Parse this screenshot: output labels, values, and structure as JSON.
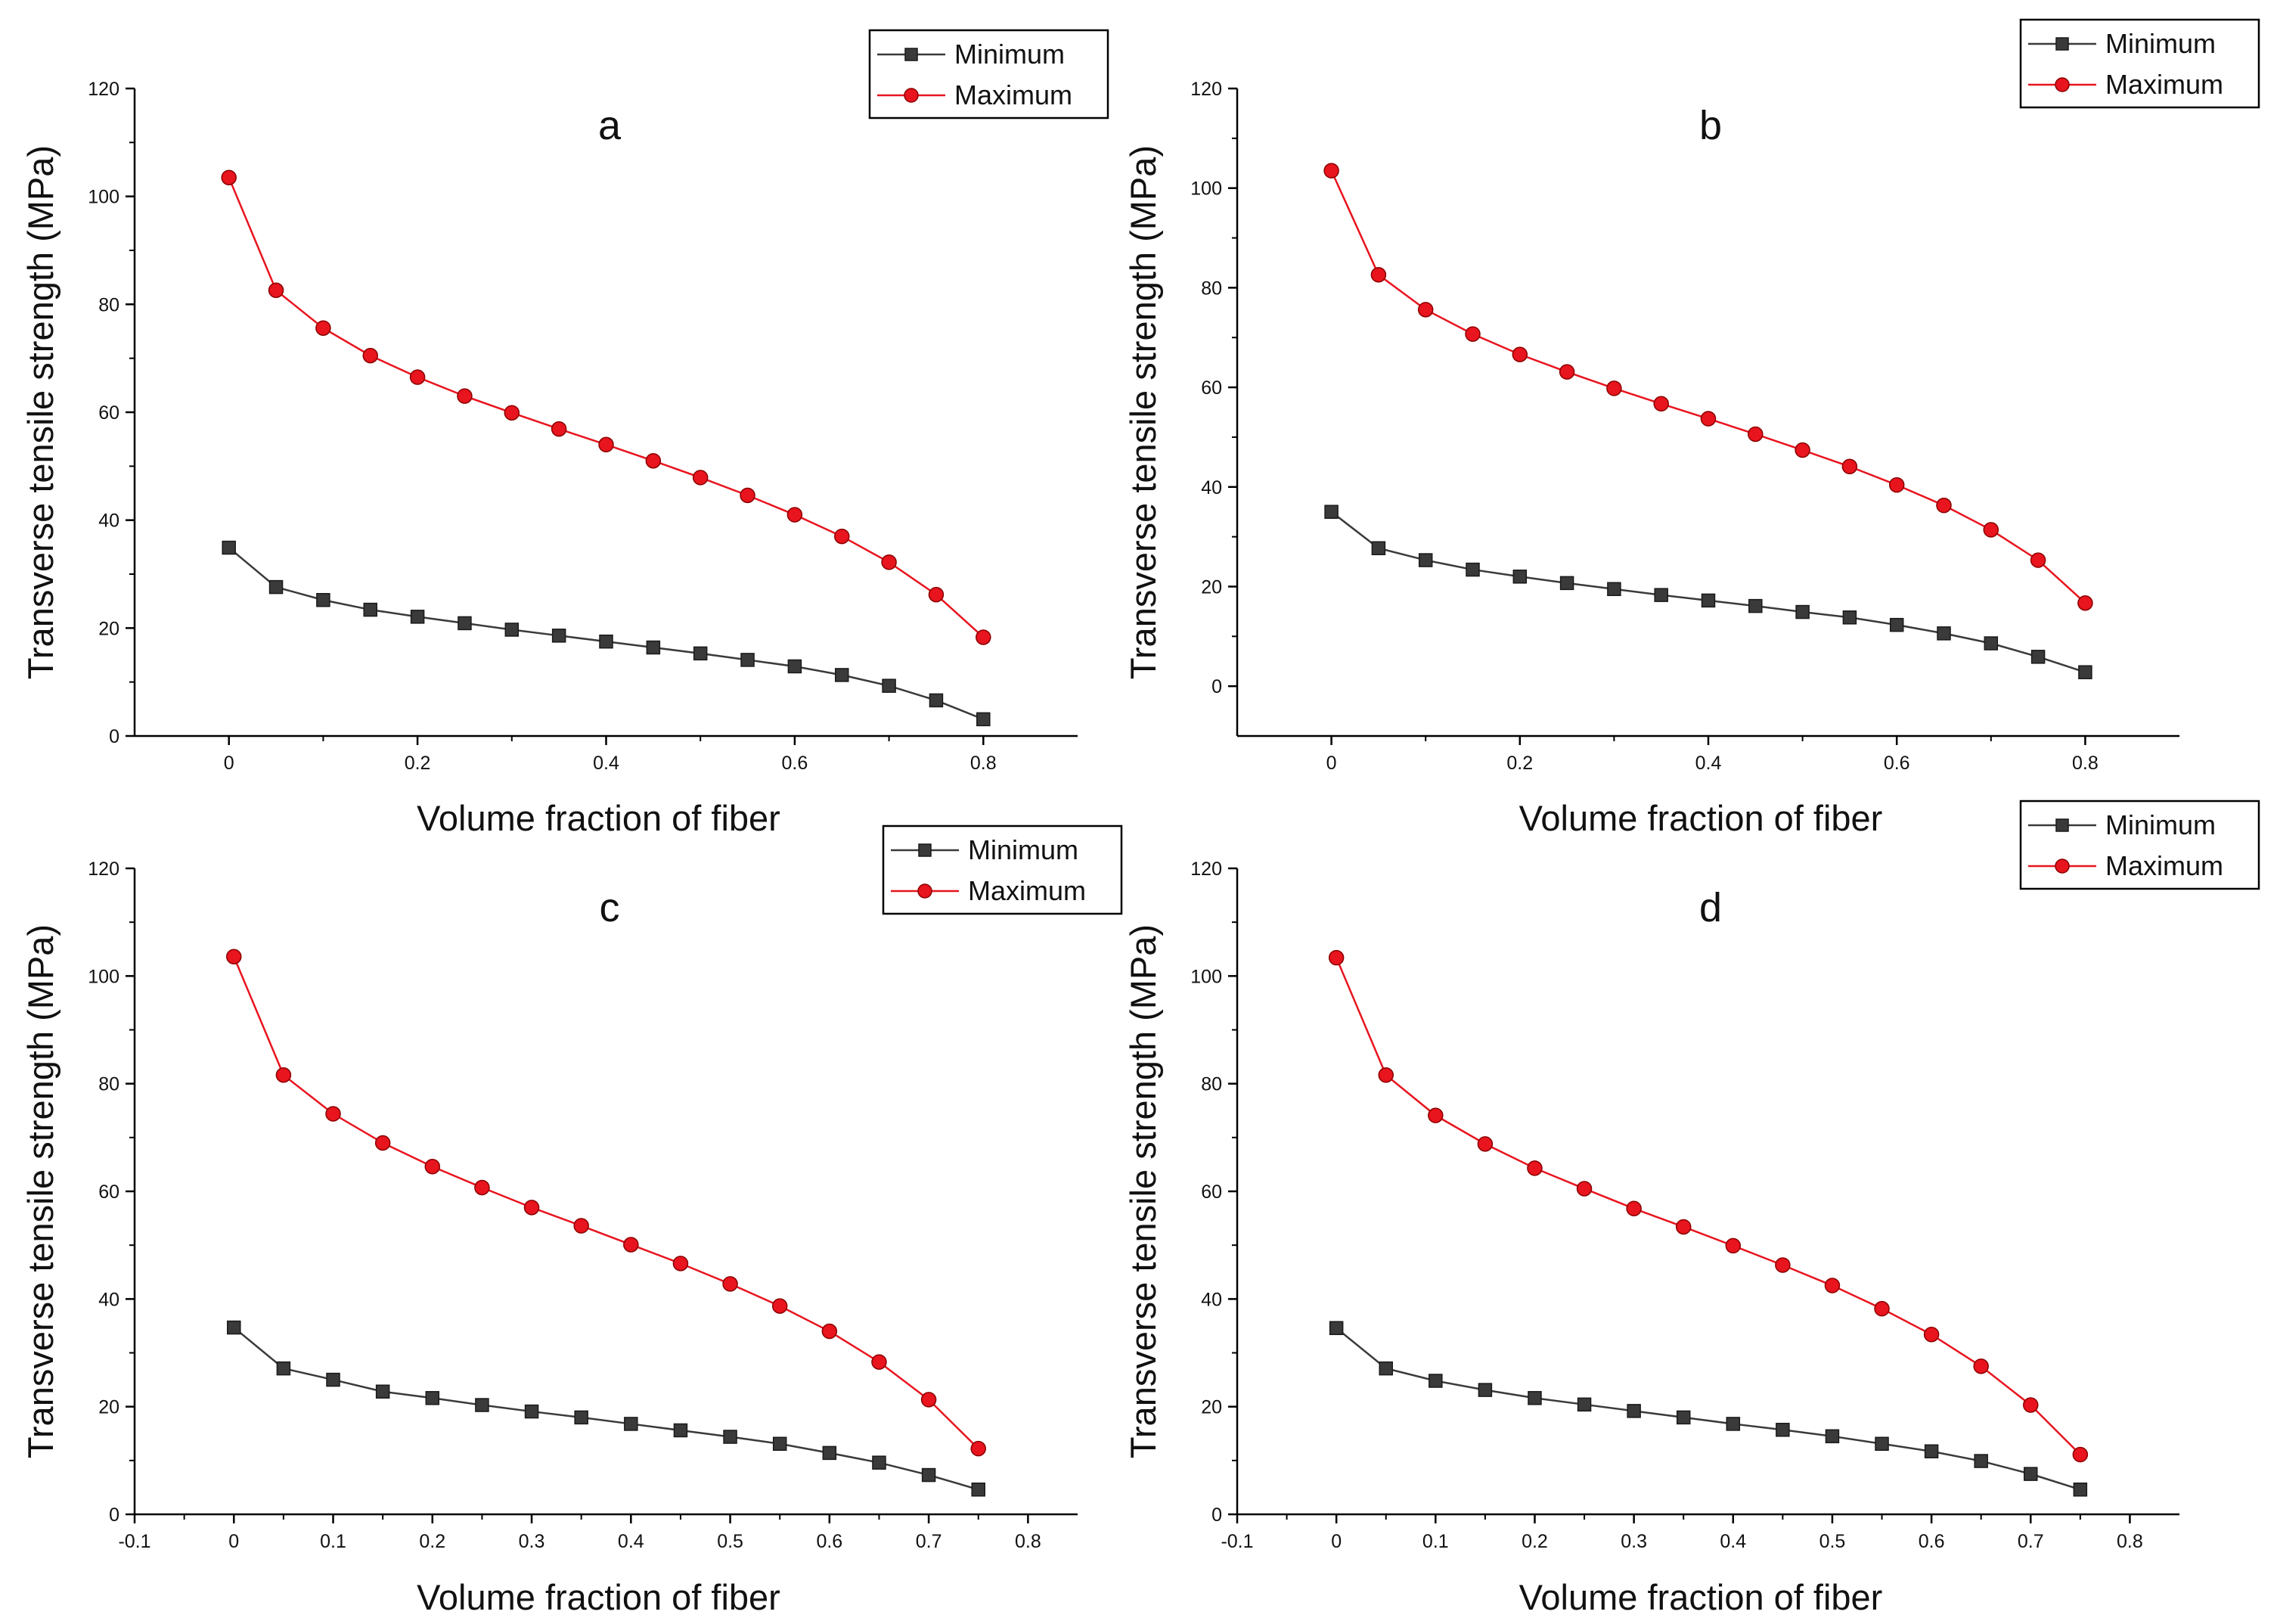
{
  "colors": {
    "minimum": "#3a3a3a",
    "maximum": "#e8141e",
    "axis": "#000000"
  },
  "chart_data": [
    {
      "type": "line",
      "panel": "a",
      "xlabel": "Volume fraction of fiber",
      "ylabel": "Transverse tensile strength (MPa)",
      "xlim": [
        -0.1,
        0.9
      ],
      "ylim": [
        0,
        120
      ],
      "xticks": [
        "0",
        "0.2",
        "0.4",
        "0.6",
        "0.8"
      ],
      "yticks": [
        "0",
        "20",
        "40",
        "60",
        "80",
        "100",
        "120"
      ],
      "legend_position": "top-right",
      "x": [
        0,
        0.05,
        0.1,
        0.15,
        0.2,
        0.25,
        0.3,
        0.35,
        0.4,
        0.45,
        0.5,
        0.55,
        0.6,
        0.65,
        0.7,
        0.75,
        0.8
      ],
      "series": [
        {
          "name": "Minimum",
          "marker": "square",
          "values": [
            34.9,
            27.6,
            25.2,
            23.4,
            22.1,
            20.9,
            19.7,
            18.6,
            17.5,
            16.4,
            15.3,
            14.1,
            12.9,
            11.3,
            9.3,
            6.6,
            3.1
          ]
        },
        {
          "name": "Maximum",
          "marker": "circle",
          "values": [
            103.5,
            82.6,
            75.6,
            70.5,
            66.5,
            63.0,
            59.9,
            56.9,
            54.0,
            51.0,
            47.9,
            44.6,
            41.0,
            37.0,
            32.2,
            26.2,
            18.3
          ]
        }
      ]
    },
    {
      "type": "line",
      "panel": "b",
      "xlabel": "Volume fraction of fiber",
      "ylabel": "Transverse tensile strength (MPa)",
      "xlim": [
        -0.1,
        0.9
      ],
      "ylim": [
        -10,
        120
      ],
      "xticks": [
        "0",
        "0.2",
        "0.4",
        "0.6",
        "0.8"
      ],
      "yticks": [
        "0",
        "20",
        "40",
        "60",
        "80",
        "100",
        "120"
      ],
      "legend_position": "top-right",
      "x": [
        0,
        0.05,
        0.1,
        0.15,
        0.2,
        0.25,
        0.3,
        0.35,
        0.4,
        0.45,
        0.5,
        0.55,
        0.6,
        0.65,
        0.7,
        0.75,
        0.8
      ],
      "series": [
        {
          "name": "Minimum",
          "marker": "square",
          "values": [
            35.0,
            27.7,
            25.3,
            23.4,
            22.0,
            20.7,
            19.5,
            18.3,
            17.2,
            16.1,
            14.9,
            13.8,
            12.3,
            10.6,
            8.6,
            5.9,
            2.8
          ]
        },
        {
          "name": "Maximum",
          "marker": "circle",
          "values": [
            103.5,
            82.6,
            75.6,
            70.7,
            66.6,
            63.1,
            59.8,
            56.7,
            53.7,
            50.6,
            47.4,
            44.1,
            40.4,
            36.3,
            31.4,
            25.3,
            16.7
          ]
        }
      ]
    },
    {
      "type": "line",
      "panel": "c",
      "xlabel": "Volume fraction of fiber",
      "ylabel": "Transverse tensile strength (MPa)",
      "xlim": [
        -0.1,
        0.85
      ],
      "ylim": [
        0,
        120
      ],
      "xticks": [
        "-0.1",
        "0",
        "0.1",
        "0.2",
        "0.3",
        "0.4",
        "0.5",
        "0.6",
        "0.7",
        "0.8"
      ],
      "yticks": [
        "0",
        "20",
        "40",
        "60",
        "80",
        "100",
        "120"
      ],
      "legend_position": "top-right",
      "x": [
        0,
        0.05,
        0.1,
        0.15,
        0.2,
        0.25,
        0.3,
        0.35,
        0.4,
        0.45,
        0.5,
        0.55,
        0.6,
        0.65,
        0.7,
        0.75
      ],
      "series": [
        {
          "name": "Minimum",
          "marker": "square",
          "values": [
            34.7,
            27.1,
            25.0,
            22.8,
            21.6,
            20.3,
            19.1,
            18.0,
            16.8,
            15.6,
            14.4,
            13.1,
            11.4,
            9.6,
            7.3,
            4.6
          ]
        },
        {
          "name": "Maximum",
          "marker": "circle",
          "values": [
            103.6,
            81.6,
            74.4,
            69.0,
            64.6,
            60.7,
            57.0,
            53.6,
            50.1,
            46.6,
            42.8,
            38.7,
            34.0,
            28.3,
            21.3,
            12.2
          ]
        }
      ]
    },
    {
      "type": "line",
      "panel": "d",
      "xlabel": "Volume fraction of fiber",
      "ylabel": "Transverse tensile strength (MPa)",
      "xlim": [
        -0.1,
        0.85
      ],
      "ylim": [
        0,
        120
      ],
      "xticks": [
        "-0.1",
        "0",
        "0.1",
        "0.2",
        "0.3",
        "0.4",
        "0.5",
        "0.6",
        "0.7",
        "0.8"
      ],
      "yticks": [
        "0",
        "20",
        "40",
        "60",
        "80",
        "100",
        "120"
      ],
      "legend_position": "top-right",
      "x": [
        0,
        0.05,
        0.1,
        0.15,
        0.2,
        0.25,
        0.3,
        0.35,
        0.4,
        0.45,
        0.5,
        0.55,
        0.6,
        0.65,
        0.7,
        0.75
      ],
      "series": [
        {
          "name": "Minimum",
          "marker": "square",
          "values": [
            34.6,
            27.1,
            24.8,
            23.1,
            21.6,
            20.4,
            19.2,
            18.0,
            16.8,
            15.7,
            14.5,
            13.1,
            11.7,
            9.9,
            7.5,
            4.6
          ]
        },
        {
          "name": "Maximum",
          "marker": "circle",
          "values": [
            103.4,
            81.6,
            74.1,
            68.8,
            64.3,
            60.5,
            56.8,
            53.4,
            49.9,
            46.3,
            42.5,
            38.2,
            33.4,
            27.5,
            20.3,
            11.1
          ]
        }
      ]
    }
  ]
}
